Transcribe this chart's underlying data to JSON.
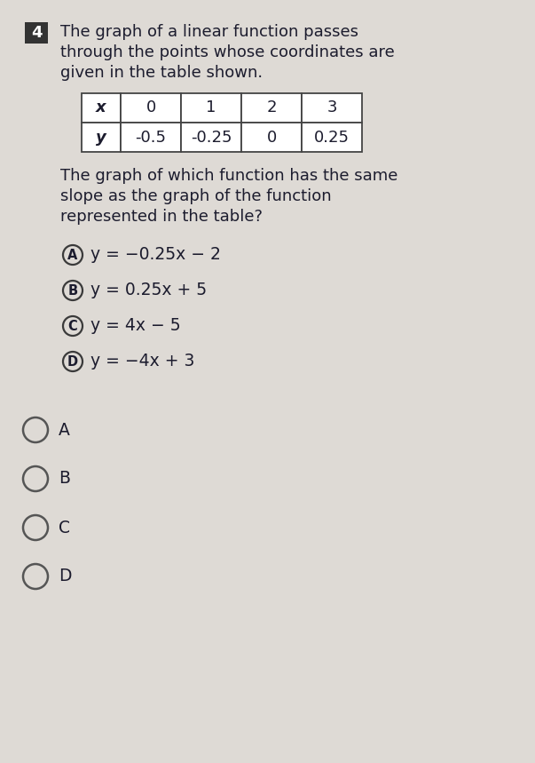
{
  "question_number": "4",
  "question_number_bg": "#333333",
  "question_text_line1": "The graph of a linear function passes",
  "question_text_line2": "through the points whose coordinates are",
  "question_text_line3": "given in the table shown.",
  "table_x_values": [
    "x",
    "0",
    "1",
    "2",
    "3"
  ],
  "table_y_values": [
    "y",
    "-0.5",
    "-0.25",
    "0",
    "0.25"
  ],
  "follow_up_line1": "The graph of which function has the same",
  "follow_up_line2": "slope as the graph of the function",
  "follow_up_line3": "represented in the table?",
  "options": [
    {
      "label": "A",
      "eq": "y = −0.25x − 2"
    },
    {
      "label": "B",
      "eq": "y = 0.25x + 5"
    },
    {
      "label": "C",
      "eq": "y = 4x − 5"
    },
    {
      "label": "D",
      "eq": "y = −4x + 3"
    }
  ],
  "radio_labels": [
    "A",
    "B",
    "C",
    "D"
  ],
  "bg_color": "#dedad5",
  "text_color": "#1c1c2e",
  "table_border_color": "#444444",
  "table_bg": "#ffffff",
  "font_family": "DejaVu Sans",
  "q_fontsize": 13.0,
  "table_fontsize": 13.0,
  "option_fontsize": 13.5,
  "radio_fontsize": 13.5
}
